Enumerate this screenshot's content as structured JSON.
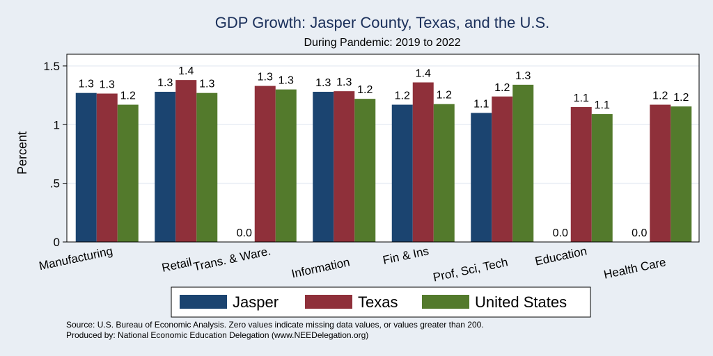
{
  "colors": {
    "background": "#e9eef4",
    "plot_area": "#ffffff",
    "grid": "#e9eef4",
    "title": "#1a2f5a"
  },
  "chart_data": {
    "type": "bar",
    "title": "GDP Growth: Jasper County, Texas, and the U.S.",
    "subtitle": "During Pandemic: 2019 to 2022",
    "ylabel": "Percent",
    "xlabel": "",
    "ylim": [
      0,
      1.6
    ],
    "yticks": [
      {
        "value": 0,
        "label": "0"
      },
      {
        "value": 0.5,
        "label": ".5"
      },
      {
        "value": 1,
        "label": "1"
      },
      {
        "value": 1.5,
        "label": "1.5"
      }
    ],
    "grid": true,
    "legend_position": "bottom",
    "categories": [
      "Manufacturing",
      "Retail",
      "Trans. & Ware.",
      "Information",
      "Fin & Ins",
      "Prof, Sci, Tech",
      "Education",
      "Health Care"
    ],
    "series": [
      {
        "name": "Jasper",
        "color": "#1b4470",
        "values": [
          1.27,
          1.28,
          0.0,
          1.28,
          1.17,
          1.1,
          0.0,
          0.0
        ],
        "labels": [
          "1.3",
          "1.3",
          "0.0",
          "1.3",
          "1.2",
          "1.1",
          "0.0",
          "0.0"
        ]
      },
      {
        "name": "Texas",
        "color": "#8f303a",
        "values": [
          1.265,
          1.38,
          1.33,
          1.285,
          1.36,
          1.24,
          1.15,
          1.17
        ],
        "labels": [
          "1.3",
          "1.4",
          "1.3",
          "1.3",
          "1.4",
          "1.2",
          "1.1",
          "1.2"
        ]
      },
      {
        "name": "United States",
        "color": "#537a2c",
        "values": [
          1.17,
          1.27,
          1.3,
          1.22,
          1.175,
          1.34,
          1.09,
          1.155
        ],
        "labels": [
          "1.2",
          "1.3",
          "1.3",
          "1.2",
          "1.2",
          "1.3",
          "1.1",
          "1.2"
        ]
      }
    ]
  },
  "footer": {
    "source": "Source: U.S. Bureau of Economic Analysis. Zero values indicate missing data values, or values greater than 200.",
    "produced_by": "Produced by: National Economic Education Delegation (www.NEEDelegation.org)"
  }
}
